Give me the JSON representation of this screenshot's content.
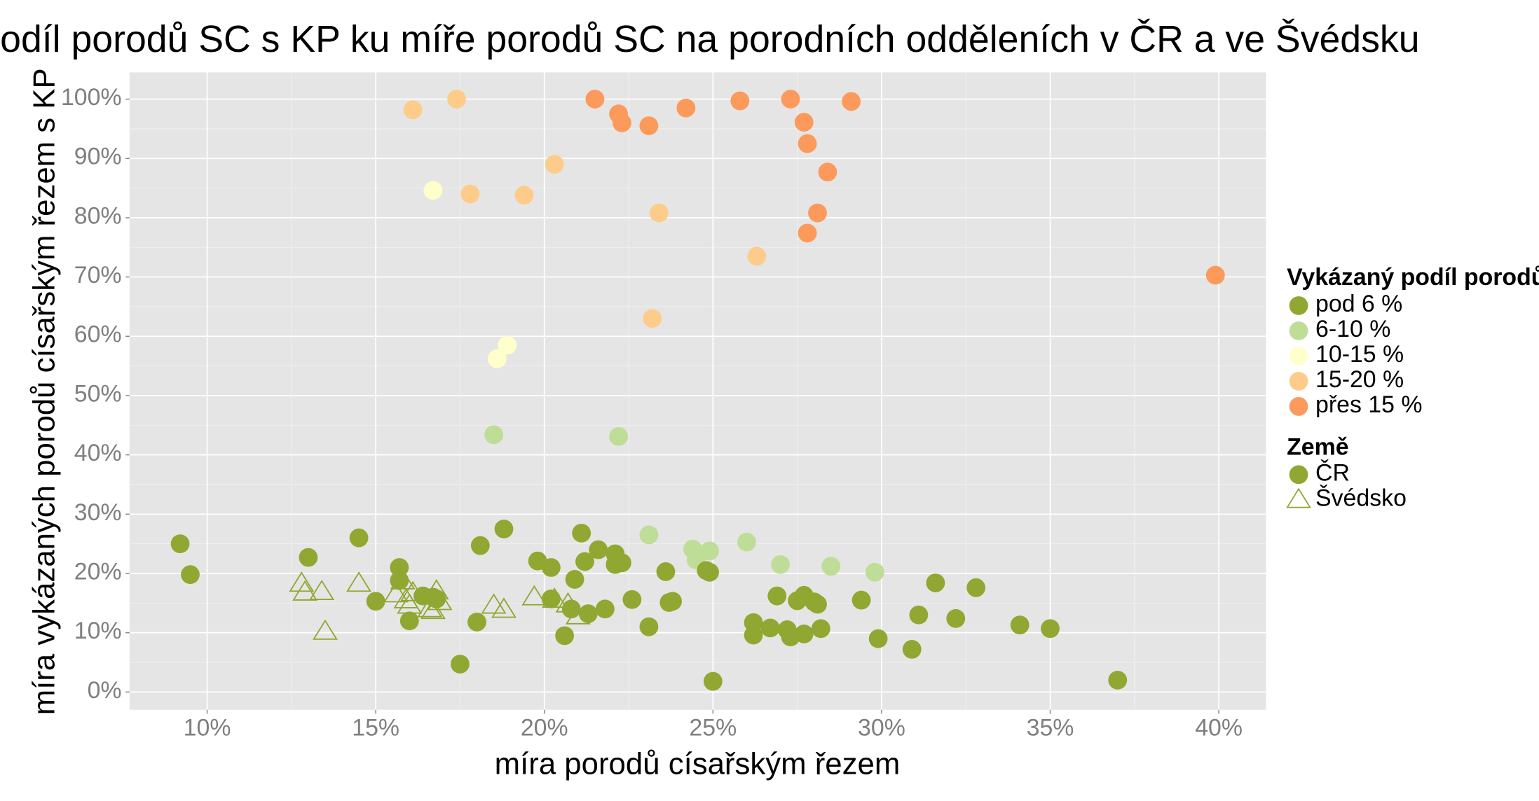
{
  "chart_data": {
    "type": "scatter",
    "title": "Podíl porodů SC s KP ku míře porodů SC na porodních odděleních v ČR a ve Švédsku",
    "xlabel": "míra porodů císařským řezem",
    "ylabel": "míra vykázaných porodů císařským řezem s KP",
    "xlim": [
      7.7,
      41.4
    ],
    "ylim": [
      -3,
      104.5
    ],
    "x_ticks": [
      10,
      15,
      20,
      25,
      30,
      35,
      40
    ],
    "x_tick_labels": [
      "10%",
      "15%",
      "20%",
      "25%",
      "30%",
      "35%",
      "40%"
    ],
    "y_ticks": [
      0,
      10,
      20,
      30,
      40,
      50,
      60,
      70,
      80,
      90,
      100
    ],
    "y_tick_labels": [
      "0%",
      "10%",
      "20%",
      "30%",
      "40%",
      "50%",
      "60%",
      "70%",
      "80%",
      "90%",
      "100%"
    ],
    "grid": true,
    "legend_placement": "right",
    "legend": {
      "color_title": "Vykázaný podíl porodů KP",
      "color_items": [
        {
          "label": "pod 6 %",
          "color": "#90a832"
        },
        {
          "label": "6-10 %",
          "color": "#bedd97"
        },
        {
          "label": "10-15 %",
          "color": "#ffffcc"
        },
        {
          "label": "15-20 %",
          "color": "#fdcc8a"
        },
        {
          "label": "přes 15 %",
          "color": "#fc9a5c"
        }
      ],
      "shape_title": "Země",
      "shape_items": [
        {
          "label": "ČR",
          "shape": "circle"
        },
        {
          "label": "Švédsko",
          "shape": "triangle"
        }
      ]
    },
    "series": [
      {
        "name": "ČR",
        "shape": "circle",
        "points": [
          [
            16.1,
            98.2,
            3
          ],
          [
            17.4,
            100,
            3
          ],
          [
            20.3,
            89,
            3
          ],
          [
            17.8,
            84,
            3
          ],
          [
            19.4,
            83.8,
            3
          ],
          [
            23.4,
            80.8,
            3
          ],
          [
            26.3,
            73.5,
            3
          ],
          [
            23.2,
            63,
            3
          ],
          [
            21.5,
            100,
            4
          ],
          [
            22.2,
            97.5,
            4
          ],
          [
            22.3,
            96,
            4
          ],
          [
            23.1,
            95.5,
            4
          ],
          [
            24.2,
            98.5,
            4
          ],
          [
            25.8,
            99.7,
            4
          ],
          [
            27.3,
            100,
            4
          ],
          [
            29.1,
            99.6,
            4
          ],
          [
            27.7,
            96.1,
            4
          ],
          [
            27.8,
            92.5,
            4
          ],
          [
            28.4,
            87.7,
            4
          ],
          [
            28.1,
            80.8,
            4
          ],
          [
            27.8,
            77.4,
            4
          ],
          [
            39.9,
            70.3,
            4
          ],
          [
            16.7,
            84.6,
            2
          ],
          [
            18.6,
            56.2,
            2
          ],
          [
            18.9,
            58.5,
            2
          ],
          [
            18.5,
            43.4,
            1
          ],
          [
            22.2,
            43.1,
            1
          ],
          [
            23.1,
            26.5,
            1
          ],
          [
            24.4,
            24.1,
            1
          ],
          [
            24.5,
            22.3,
            1
          ],
          [
            24.9,
            23.8,
            1
          ],
          [
            26,
            25.3,
            1
          ],
          [
            27,
            21.5,
            1
          ],
          [
            28.5,
            21.2,
            1
          ],
          [
            29.8,
            20.2,
            1
          ],
          [
            9.2,
            25,
            0
          ],
          [
            9.5,
            19.8,
            0
          ],
          [
            13,
            22.7,
            0
          ],
          [
            14.5,
            26,
            0
          ],
          [
            15,
            15.3,
            0
          ],
          [
            15.7,
            21,
            0
          ],
          [
            15.7,
            18.8,
            0
          ],
          [
            16,
            12,
            0
          ],
          [
            16.4,
            16.2,
            0
          ],
          [
            16.7,
            16,
            0
          ],
          [
            16.8,
            15.7,
            0
          ],
          [
            17.5,
            4.7,
            0
          ],
          [
            18,
            11.8,
            0
          ],
          [
            18.1,
            24.7,
            0
          ],
          [
            18.8,
            27.5,
            0
          ],
          [
            19.8,
            22.1,
            0
          ],
          [
            20.2,
            21,
            0
          ],
          [
            20.2,
            15.7,
            0
          ],
          [
            20.6,
            9.5,
            0
          ],
          [
            20.8,
            14,
            0
          ],
          [
            20.9,
            19,
            0
          ],
          [
            21.1,
            26.8,
            0
          ],
          [
            21.2,
            22,
            0
          ],
          [
            21.3,
            13.2,
            0
          ],
          [
            21.6,
            24,
            0
          ],
          [
            21.8,
            14,
            0
          ],
          [
            22.1,
            23.3,
            0
          ],
          [
            22.1,
            21.5,
            0
          ],
          [
            22.3,
            21.8,
            0
          ],
          [
            22.6,
            15.6,
            0
          ],
          [
            23.1,
            11,
            0
          ],
          [
            23.6,
            20.3,
            0
          ],
          [
            23.7,
            15.1,
            0
          ],
          [
            23.8,
            15.3,
            0
          ],
          [
            24.8,
            20.5,
            0
          ],
          [
            24.9,
            20.2,
            0
          ],
          [
            25,
            1.8,
            0
          ],
          [
            26.2,
            11.7,
            0
          ],
          [
            26.2,
            9.6,
            0
          ],
          [
            26.7,
            10.8,
            0
          ],
          [
            26.9,
            16.2,
            0
          ],
          [
            27.2,
            10.5,
            0
          ],
          [
            27.3,
            9.3,
            0
          ],
          [
            27.5,
            15.4,
            0
          ],
          [
            27.7,
            16.3,
            0
          ],
          [
            27.7,
            9.8,
            0
          ],
          [
            28,
            15.2,
            0
          ],
          [
            28.1,
            14.8,
            0
          ],
          [
            28.2,
            10.7,
            0
          ],
          [
            29.4,
            15.5,
            0
          ],
          [
            29.9,
            9,
            0
          ],
          [
            30.9,
            7.2,
            0
          ],
          [
            31.1,
            13,
            0
          ],
          [
            31.6,
            18.4,
            0
          ],
          [
            32.2,
            12.4,
            0
          ],
          [
            32.8,
            17.6,
            0
          ],
          [
            34.1,
            11.3,
            0
          ],
          [
            35,
            10.7,
            0
          ],
          [
            37,
            2,
            0
          ]
        ]
      },
      {
        "name": "Švédsko",
        "shape": "triangle",
        "points": [
          [
            12.8,
            18.3
          ],
          [
            12.9,
            16.8
          ],
          [
            13.4,
            16.9
          ],
          [
            13.5,
            10.2
          ],
          [
            14.5,
            18.3
          ],
          [
            15.6,
            16.5
          ],
          [
            15.8,
            18.7
          ],
          [
            15.9,
            15.5
          ],
          [
            16.0,
            14.6
          ],
          [
            16.1,
            16.7
          ],
          [
            16.6,
            14.0
          ],
          [
            16.7,
            13.7
          ],
          [
            16.8,
            17.0
          ],
          [
            16.9,
            15.2
          ],
          [
            18.5,
            14.6
          ],
          [
            18.8,
            13.9
          ],
          [
            19.7,
            16.0
          ],
          [
            20.3,
            15.6
          ],
          [
            20.7,
            14.8
          ],
          [
            21.0,
            12.8
          ]
        ]
      }
    ]
  }
}
